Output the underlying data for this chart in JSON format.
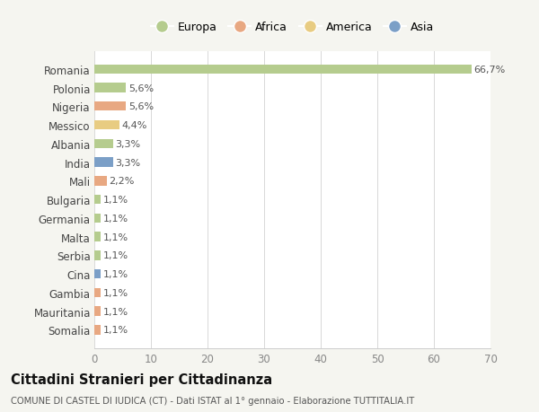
{
  "countries": [
    "Romania",
    "Polonia",
    "Nigeria",
    "Messico",
    "Albania",
    "India",
    "Mali",
    "Bulgaria",
    "Germania",
    "Malta",
    "Serbia",
    "Cina",
    "Gambia",
    "Mauritania",
    "Somalia"
  ],
  "values": [
    66.7,
    5.6,
    5.6,
    4.4,
    3.3,
    3.3,
    2.2,
    1.1,
    1.1,
    1.1,
    1.1,
    1.1,
    1.1,
    1.1,
    1.1
  ],
  "labels": [
    "66,7%",
    "5,6%",
    "5,6%",
    "4,4%",
    "3,3%",
    "3,3%",
    "2,2%",
    "1,1%",
    "1,1%",
    "1,1%",
    "1,1%",
    "1,1%",
    "1,1%",
    "1,1%",
    "1,1%"
  ],
  "continents": [
    "Europa",
    "Europa",
    "Africa",
    "America",
    "Europa",
    "Asia",
    "Africa",
    "Europa",
    "Europa",
    "Europa",
    "Europa",
    "Asia",
    "Africa",
    "Africa",
    "Africa"
  ],
  "continent_colors": {
    "Europa": "#b5cc8e",
    "Africa": "#e8a882",
    "America": "#e8cc82",
    "Asia": "#7b9fc7"
  },
  "legend_order": [
    "Europa",
    "Africa",
    "America",
    "Asia"
  ],
  "background_color": "#f5f5f0",
  "bar_background": "#ffffff",
  "title": "Cittadini Stranieri per Cittadinanza",
  "subtitle": "COMUNE DI CASTEL DI IUDICA (CT) - Dati ISTAT al 1° gennaio - Elaborazione TUTTITALIA.IT",
  "xlim": [
    0,
    70
  ],
  "xticks": [
    0,
    10,
    20,
    30,
    40,
    50,
    60,
    70
  ],
  "figsize": [
    6.0,
    4.6
  ],
  "dpi": 100
}
